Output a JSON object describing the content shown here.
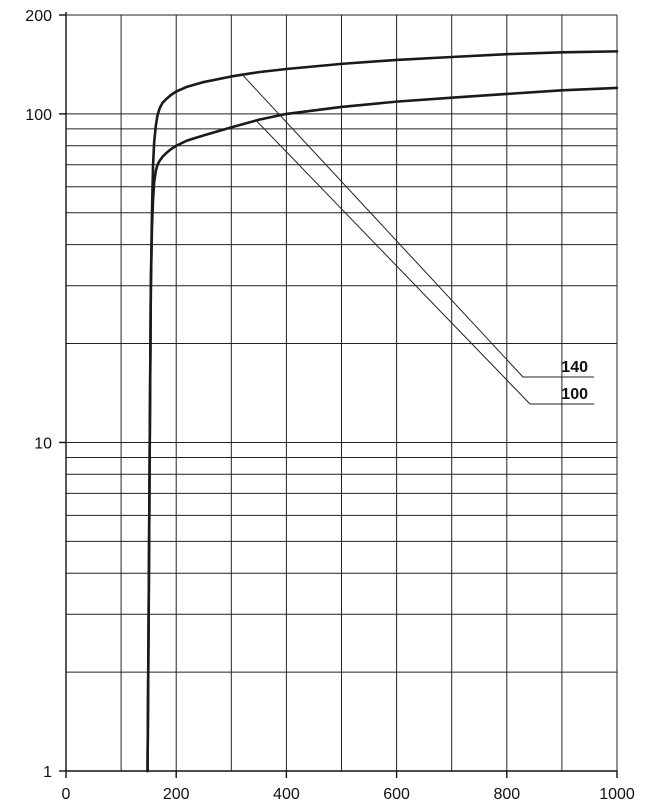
{
  "chart_data": {
    "type": "line",
    "title": "",
    "xlabel": "",
    "ylabel": "",
    "xlim": [
      0,
      1000
    ],
    "ylim": [
      1,
      200
    ],
    "yscale": "log",
    "grid": true,
    "legend": "leader-line labels at right",
    "x_ticks": [
      0,
      200,
      400,
      600,
      800,
      1000
    ],
    "x_tick_labels": [
      "0",
      "200",
      "400",
      "600",
      "800",
      "1000"
    ],
    "y_ticks": [
      1,
      10,
      100,
      200
    ],
    "y_tick_labels": [
      "1",
      "10",
      "100",
      "200"
    ],
    "series": [
      {
        "name": "140",
        "color": "#1a1a1a",
        "x": [
          148,
          150,
          152,
          154,
          156,
          158,
          160,
          163,
          166,
          170,
          175,
          182,
          190,
          200,
          220,
          250,
          300,
          350,
          400,
          500,
          600,
          700,
          800,
          900,
          1000
        ],
        "y": [
          1,
          3,
          10,
          30,
          50,
          70,
          82,
          92,
          99,
          104,
          108,
          111,
          114,
          117,
          121,
          125,
          130,
          134,
          137,
          142,
          146,
          149,
          152,
          154,
          155
        ]
      },
      {
        "name": "100",
        "color": "#1a1a1a",
        "x": [
          148,
          150,
          152,
          154,
          156,
          158,
          160,
          163,
          166,
          170,
          175,
          182,
          190,
          200,
          220,
          250,
          300,
          350,
          400,
          500,
          600,
          700,
          800,
          900,
          1000
        ],
        "y": [
          1,
          3,
          10,
          30,
          45,
          55,
          62,
          67,
          70,
          72,
          74,
          76,
          78,
          80,
          83,
          86,
          91,
          96,
          100,
          105,
          109,
          112,
          115,
          118,
          120
        ]
      }
    ]
  }
}
